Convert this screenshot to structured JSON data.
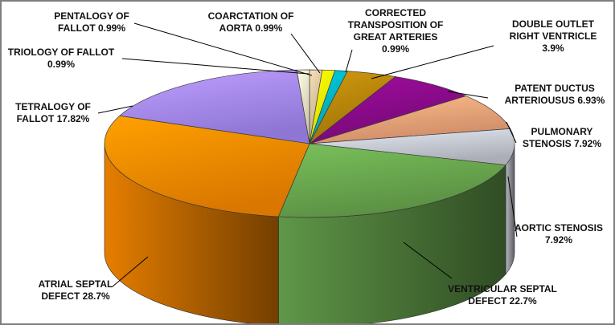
{
  "chart_data": {
    "type": "pie",
    "title": "",
    "grid": false,
    "legend": "none",
    "slices": [
      {
        "name": "PENTALOGY OF FALLOT",
        "value": 0.99,
        "label": [
          "PENTALOGY OF",
          "FALLOT 0.99%"
        ],
        "color": "#d9c4a0"
      },
      {
        "name": "COARCTATION OF AORTA",
        "value": 0.99,
        "label": [
          "COARCTATION OF",
          "AORTA 0.99%"
        ],
        "color": "#ffff00"
      },
      {
        "name": "CORRECTED TRANSPOSITION OF GREAT ARTERIES",
        "value": 0.99,
        "label": [
          "CORRECTED",
          "TRANSPOSITION OF",
          "GREAT ARTERIES",
          "0.99%"
        ],
        "color": "#00b7c8"
      },
      {
        "name": "DOUBLE OUTLET RIGHT VENTRICLE",
        "value": 3.9,
        "label": [
          "DOUBLE OUTLET",
          "RIGHT VENTRICLE",
          "3.9%"
        ],
        "color": "#b8860b"
      },
      {
        "name": "PATENT DUCTUS ARTERIOUSUS",
        "value": 6.93,
        "label": [
          "PATENT DUCTUS",
          "ARTERIOUSUS 6.93%"
        ],
        "color": "#8b0a8b"
      },
      {
        "name": "PULMONARY STENOSIS",
        "value": 7.92,
        "label": [
          "PULMONARY",
          "STENOSIS 7.92%"
        ],
        "color": "#f4a57a"
      },
      {
        "name": "AORTIC STENOSIS",
        "value": 7.92,
        "label": [
          "AORTIC STENOSIS",
          "7.92%"
        ],
        "color": "#c9cdd6"
      },
      {
        "name": "VENTRICULAR SEPTAL DEFECT",
        "value": 22.7,
        "label": [
          "VENTRICULAR  SEPTAL",
          "DEFECT 22.7%"
        ],
        "color": "#6aa84f"
      },
      {
        "name": "ATRIAL SEPTAL DEFECT",
        "value": 28.7,
        "label": [
          "ATRIAL  SEPTAL",
          "DEFECT 28.7%"
        ],
        "color": "#ff8c00"
      },
      {
        "name": "TETRALOGY OF FALLOT",
        "value": 17.82,
        "label": [
          "TETRALOGY OF",
          "FALLOT 17.82%"
        ],
        "color": "#a78bfa"
      },
      {
        "name": "TRIOLOGY OF FALLOT",
        "value": 0.99,
        "label": [
          "TRIOLOGY OF FALLOT",
          "0.99%"
        ],
        "color": "#efe6c8"
      }
    ]
  }
}
